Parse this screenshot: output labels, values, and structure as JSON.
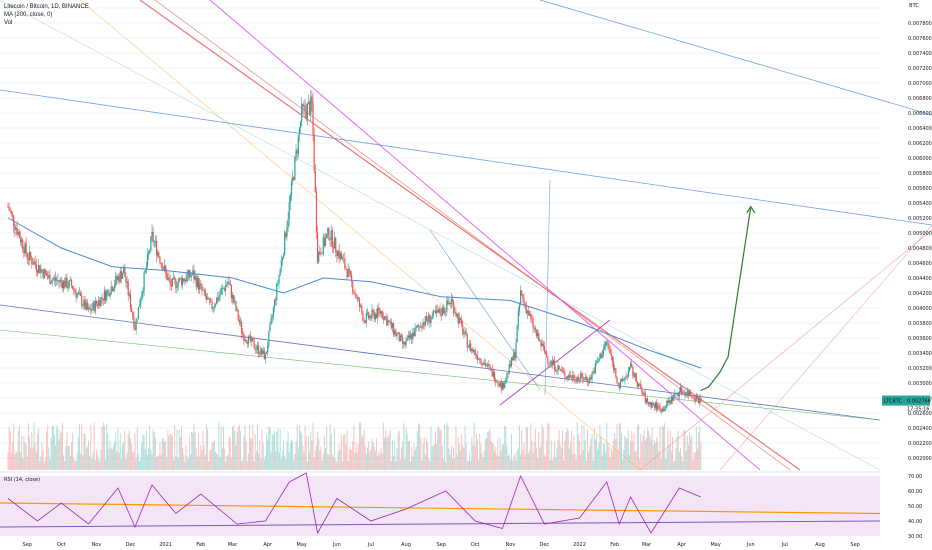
{
  "legend": {
    "symbol_line": "Litecoin / Bitcoin, 1D, BINANCE",
    "ma_line": "MA (200, close, 0)",
    "vol_line": "Vol",
    "rsi_line": "RSI (14, close)"
  },
  "price_axis": {
    "unit": "BTC",
    "ticks": [
      "0.008000",
      "0.007800",
      "0.007600",
      "0.007400",
      "0.007200",
      "0.007000",
      "0.006800",
      "0.006600",
      "0.006400",
      "0.006200",
      "0.006000",
      "0.005800",
      "0.005600",
      "0.005400",
      "0.005200",
      "0.005000",
      "0.004800",
      "0.004600",
      "0.004400",
      "0.004200",
      "0.004000",
      "0.003800",
      "0.003600",
      "0.003400",
      "0.003200",
      "0.003000",
      "0.002800",
      "0.002600",
      "0.002400",
      "0.002200",
      "0.002000"
    ],
    "last_label": "LTCBTC",
    "last_value": "0.002766",
    "countdown": "17:35:16"
  },
  "rsi_axis": {
    "ticks": [
      "70.00",
      "60.00",
      "50.00",
      "40.00",
      "30.00"
    ]
  },
  "time_axis": [
    "Sep",
    "Oct",
    "Nov",
    "Dec",
    "2021",
    "Feb",
    "Mar",
    "Apr",
    "May",
    "Jun",
    "Jul",
    "Aug",
    "Sep",
    "Oct",
    "Nov",
    "Dec",
    "2022",
    "Feb",
    "Mar",
    "Apr",
    "May",
    "Jun",
    "Jul",
    "Aug",
    "Sep"
  ],
  "colors": {
    "up": "#26a69a",
    "down": "#ef5350",
    "ma": "#4c8bd4",
    "rsi_line": "#9c27b0",
    "rsi_band": "#f3e5f5",
    "rsi_trend": "#ff9800",
    "projection": "#2e7d32",
    "projection_short": "#2962ff"
  },
  "chart_data": {
    "type": "candlestick",
    "symbol": "Litecoin / Bitcoin",
    "interval": "1D",
    "exchange": "BINANCE",
    "y_unit": "BTC",
    "ylim": [
      0.002,
      0.008
    ],
    "x_range": [
      "2020-08-15",
      "2022-09-30"
    ],
    "close_path": [
      {
        "date": "2020-08-15",
        "close": 0.00535
      },
      {
        "date": "2020-09-01",
        "close": 0.0047
      },
      {
        "date": "2020-09-20",
        "close": 0.0044
      },
      {
        "date": "2020-10-10",
        "close": 0.0043
      },
      {
        "date": "2020-10-25",
        "close": 0.00395
      },
      {
        "date": "2020-11-10",
        "close": 0.0042
      },
      {
        "date": "2020-11-25",
        "close": 0.0045
      },
      {
        "date": "2020-12-05",
        "close": 0.00375
      },
      {
        "date": "2020-12-20",
        "close": 0.00495
      },
      {
        "date": "2021-01-05",
        "close": 0.0043
      },
      {
        "date": "2021-01-25",
        "close": 0.00445
      },
      {
        "date": "2021-02-10",
        "close": 0.004
      },
      {
        "date": "2021-02-25",
        "close": 0.00435
      },
      {
        "date": "2021-03-10",
        "close": 0.00365
      },
      {
        "date": "2021-03-30",
        "close": 0.00335
      },
      {
        "date": "2021-04-15",
        "close": 0.0048
      },
      {
        "date": "2021-05-01",
        "close": 0.0066
      },
      {
        "date": "2021-05-10",
        "close": 0.0067
      },
      {
        "date": "2021-05-15",
        "close": 0.0047
      },
      {
        "date": "2021-05-25",
        "close": 0.005
      },
      {
        "date": "2021-06-10",
        "close": 0.0045
      },
      {
        "date": "2021-06-25",
        "close": 0.00385
      },
      {
        "date": "2021-07-10",
        "close": 0.00395
      },
      {
        "date": "2021-07-30",
        "close": 0.0035
      },
      {
        "date": "2021-08-15",
        "close": 0.0038
      },
      {
        "date": "2021-09-01",
        "close": 0.00395
      },
      {
        "date": "2021-09-10",
        "close": 0.0041
      },
      {
        "date": "2021-09-25",
        "close": 0.0035
      },
      {
        "date": "2021-10-10",
        "close": 0.00325
      },
      {
        "date": "2021-10-25",
        "close": 0.00295
      },
      {
        "date": "2021-11-05",
        "close": 0.0034
      },
      {
        "date": "2021-11-10",
        "close": 0.0042
      },
      {
        "date": "2021-11-25",
        "close": 0.0036
      },
      {
        "date": "2021-12-05",
        "close": 0.0033
      },
      {
        "date": "2021-12-20",
        "close": 0.0031
      },
      {
        "date": "2022-01-10",
        "close": 0.00305
      },
      {
        "date": "2022-01-25",
        "close": 0.00355
      },
      {
        "date": "2022-02-05",
        "close": 0.00295
      },
      {
        "date": "2022-02-15",
        "close": 0.0032
      },
      {
        "date": "2022-03-01",
        "close": 0.00275
      },
      {
        "date": "2022-03-15",
        "close": 0.00265
      },
      {
        "date": "2022-03-30",
        "close": 0.0029
      },
      {
        "date": "2022-04-10",
        "close": 0.00285
      },
      {
        "date": "2022-04-18",
        "close": 0.002766
      }
    ],
    "moving_average_200": [
      {
        "date": "2020-08-15",
        "value": 0.0052
      },
      {
        "date": "2020-10-01",
        "value": 0.0048
      },
      {
        "date": "2020-11-15",
        "value": 0.00455
      },
      {
        "date": "2021-01-01",
        "value": 0.0045
      },
      {
        "date": "2021-03-01",
        "value": 0.0044
      },
      {
        "date": "2021-04-15",
        "value": 0.0042
      },
      {
        "date": "2021-05-20",
        "value": 0.0044
      },
      {
        "date": "2021-07-01",
        "value": 0.00435
      },
      {
        "date": "2021-09-01",
        "value": 0.00415
      },
      {
        "date": "2021-11-01",
        "value": 0.0041
      },
      {
        "date": "2022-01-01",
        "value": 0.0038
      },
      {
        "date": "2022-03-01",
        "value": 0.00345
      },
      {
        "date": "2022-04-18",
        "value": 0.0032
      }
    ],
    "rsi": {
      "name": "RSI (14, close)",
      "ylim": [
        30,
        70
      ],
      "values": [
        {
          "date": "2020-08-15",
          "value": 55
        },
        {
          "date": "2020-09-10",
          "value": 40
        },
        {
          "date": "2020-10-01",
          "value": 52
        },
        {
          "date": "2020-10-25",
          "value": 38
        },
        {
          "date": "2020-11-20",
          "value": 62
        },
        {
          "date": "2020-12-05",
          "value": 36
        },
        {
          "date": "2020-12-20",
          "value": 64
        },
        {
          "date": "2021-01-10",
          "value": 45
        },
        {
          "date": "2021-02-01",
          "value": 58
        },
        {
          "date": "2021-03-05",
          "value": 38
        },
        {
          "date": "2021-03-30",
          "value": 40
        },
        {
          "date": "2021-04-20",
          "value": 66
        },
        {
          "date": "2021-05-05",
          "value": 72
        },
        {
          "date": "2021-05-15",
          "value": 32
        },
        {
          "date": "2021-06-01",
          "value": 55
        },
        {
          "date": "2021-07-01",
          "value": 40
        },
        {
          "date": "2021-08-01",
          "value": 48
        },
        {
          "date": "2021-09-05",
          "value": 60
        },
        {
          "date": "2021-10-01",
          "value": 40
        },
        {
          "date": "2021-10-25",
          "value": 35
        },
        {
          "date": "2021-11-10",
          "value": 70
        },
        {
          "date": "2021-12-01",
          "value": 38
        },
        {
          "date": "2022-01-01",
          "value": 42
        },
        {
          "date": "2022-01-25",
          "value": 66
        },
        {
          "date": "2022-02-05",
          "value": 38
        },
        {
          "date": "2022-02-15",
          "value": 56
        },
        {
          "date": "2022-03-05",
          "value": 32
        },
        {
          "date": "2022-03-30",
          "value": 62
        },
        {
          "date": "2022-04-18",
          "value": 56
        }
      ]
    },
    "projection": [
      {
        "date": "2022-04-18",
        "value": 0.0029
      },
      {
        "date": "2022-04-25",
        "value": 0.00295
      },
      {
        "date": "2022-05-05",
        "value": 0.00315
      },
      {
        "date": "2022-05-12",
        "value": 0.00335
      },
      {
        "date": "2022-06-01",
        "value": 0.00535
      }
    ],
    "grid": true
  }
}
